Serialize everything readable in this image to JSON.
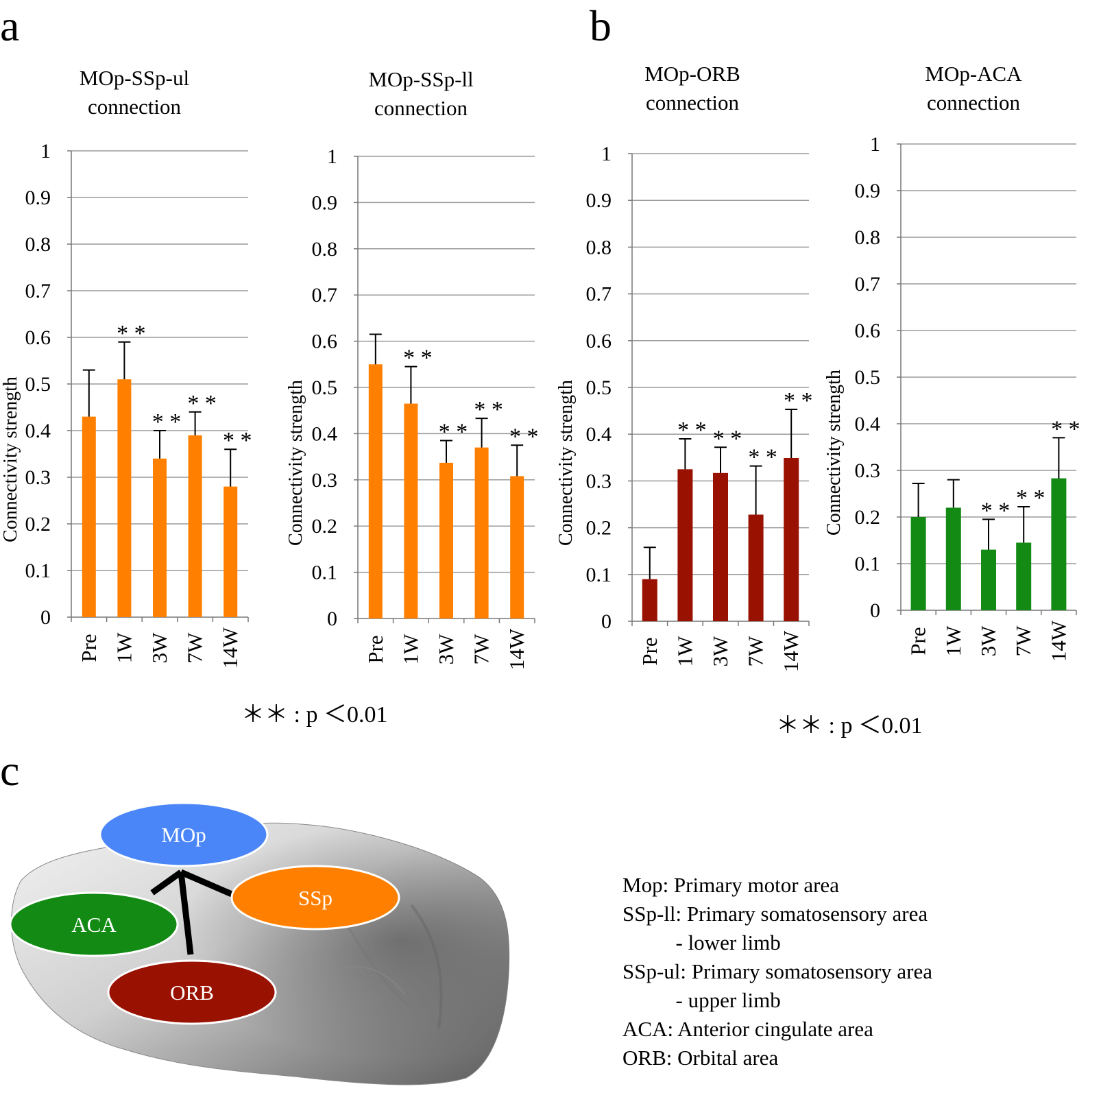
{
  "panels": {
    "a": "a",
    "b": "b",
    "c": "c"
  },
  "chart_data": [
    {
      "type": "bar",
      "title_lines": [
        "MOp-SSp-ul",
        "connection"
      ],
      "ylabel": "Connectivity  strength",
      "categories": [
        "Pre",
        "1W",
        "3W",
        "7W",
        "14W"
      ],
      "values": [
        0.43,
        0.51,
        0.34,
        0.39,
        0.28
      ],
      "errors": [
        0.1,
        0.08,
        0.06,
        0.05,
        0.08
      ],
      "significance": [
        "",
        "* *",
        "* *",
        "* *",
        "* *"
      ],
      "ylim": [
        0,
        1
      ],
      "yticks": [
        "0",
        "0.1",
        "0.2",
        "0.3",
        "0.4",
        "0.5",
        "0.6",
        "0.7",
        "0.8",
        "0.9",
        "1"
      ],
      "grid": true,
      "color": "#FF8000"
    },
    {
      "type": "bar",
      "title_lines": [
        "MOp-SSp-ll",
        "connection"
      ],
      "ylabel": "Connectivity strength",
      "categories": [
        "Pre",
        "1W",
        "3W",
        "7W",
        "14W"
      ],
      "values": [
        0.55,
        0.465,
        0.337,
        0.37,
        0.308
      ],
      "errors": [
        0.065,
        0.08,
        0.048,
        0.063,
        0.067
      ],
      "significance": [
        "",
        "* *",
        "* *",
        "* *",
        "* *"
      ],
      "ylim": [
        0,
        1
      ],
      "yticks": [
        "0",
        "0.1",
        "0.2",
        "0.3",
        "0.4",
        "0.5",
        "0.6",
        "0.7",
        "0.8",
        "0.9",
        "1"
      ],
      "grid": true,
      "color": "#FF8000"
    },
    {
      "type": "bar",
      "title_lines": [
        "MOp-ORB",
        "connection"
      ],
      "ylabel": "Connectivity strength",
      "categories": [
        "Pre",
        "1W",
        "3W",
        "7W",
        "14W"
      ],
      "values": [
        0.09,
        0.325,
        0.317,
        0.228,
        0.349
      ],
      "errors": [
        0.068,
        0.065,
        0.055,
        0.104,
        0.104
      ],
      "significance": [
        "",
        "* *",
        "* *",
        "* *",
        "* *"
      ],
      "ylim": [
        0,
        1
      ],
      "yticks": [
        "0",
        "0.1",
        "0.2",
        "0.3",
        "0.4",
        "0.5",
        "0.6",
        "0.7",
        "0.8",
        "0.9",
        "1"
      ],
      "grid": true,
      "color": "#991100"
    },
    {
      "type": "bar",
      "title_lines": [
        "MOp-ACA",
        "connection"
      ],
      "ylabel": "Connectivity strength",
      "categories": [
        "Pre",
        "1W",
        "3W",
        "7W",
        "14W"
      ],
      "values": [
        0.2,
        0.22,
        0.13,
        0.145,
        0.283
      ],
      "errors": [
        0.072,
        0.06,
        0.065,
        0.077,
        0.087
      ],
      "significance": [
        "",
        "",
        "* *",
        "* *",
        "* *"
      ],
      "ylim": [
        0,
        1
      ],
      "yticks": [
        "0",
        "0.1",
        "0.2",
        "0.3",
        "0.4",
        "0.5",
        "0.6",
        "0.7",
        "0.8",
        "0.9",
        "1"
      ],
      "grid": true,
      "color": "#138A13"
    }
  ],
  "significance_notes": {
    "a": "＊＊ : p ＜0.01",
    "b": "＊＊ : p ＜0.01"
  },
  "diagram": {
    "nodes": {
      "mop": "MOp",
      "ssp": "SSp",
      "aca": "ACA",
      "orb": "ORB"
    },
    "colors": {
      "mop": "#4A86F7",
      "ssp": "#FF8000",
      "aca": "#138A13",
      "orb": "#991100"
    }
  },
  "legend": [
    "Mop: Primary motor area",
    "SSp-ll: Primary somatosensory area",
    "          - lower limb",
    "SSp-ul: Primary somatosensory area",
    "          - upper limb",
    "ACA: Anterior cingulate area",
    "ORB: Orbital area"
  ]
}
